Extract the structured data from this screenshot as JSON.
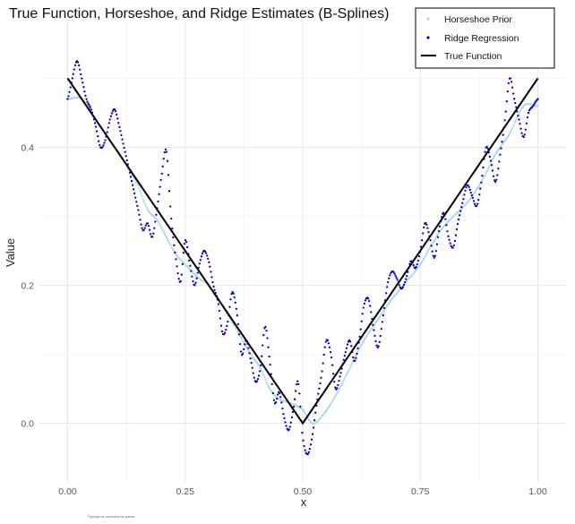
{
  "chart_data": {
    "type": "scatter",
    "title": "True Function, Horseshoe, and Ridge Estimates (B-Splines)",
    "xlabel": "x",
    "ylabel": "Value",
    "xlim": [
      -0.06,
      1.06
    ],
    "ylim": [
      -0.085,
      0.585
    ],
    "x_ticks": [
      0.0,
      0.25,
      0.5,
      0.75,
      1.0
    ],
    "x_tick_labels": [
      "0.00",
      "0.25",
      "0.50",
      "0.75",
      "1.00"
    ],
    "y_ticks": [
      0.0,
      0.2,
      0.4
    ],
    "y_tick_labels": [
      "0.0",
      "0.2",
      "0.4"
    ],
    "grid": true,
    "legend_position": "top-right",
    "footnote": "Fig/ridge-vs-horseshoe-bs-splines",
    "x_grid": {
      "start": 0,
      "end": 1,
      "count": 500
    },
    "series": [
      {
        "name": "Horseshoe Prior",
        "style": "points",
        "color": "#add8e6",
        "knots_x": [
          0.0,
          0.03,
          0.06,
          0.09,
          0.12,
          0.15,
          0.17,
          0.19,
          0.21,
          0.23,
          0.25,
          0.28,
          0.3,
          0.33,
          0.36,
          0.39,
          0.41,
          0.43,
          0.45,
          0.47,
          0.5,
          0.52,
          0.54,
          0.57,
          0.6,
          0.63,
          0.66,
          0.69,
          0.72,
          0.75,
          0.78,
          0.8,
          0.82,
          0.85,
          0.88,
          0.91,
          0.94,
          0.97,
          1.0
        ],
        "knots_y": [
          0.47,
          0.47,
          0.44,
          0.41,
          0.38,
          0.345,
          0.31,
          0.295,
          0.27,
          0.245,
          0.23,
          0.21,
          0.2,
          0.17,
          0.135,
          0.1,
          0.08,
          0.05,
          0.035,
          0.03,
          0.02,
          0.0,
          0.01,
          0.04,
          0.08,
          0.12,
          0.15,
          0.18,
          0.205,
          0.23,
          0.265,
          0.285,
          0.3,
          0.32,
          0.35,
          0.39,
          0.42,
          0.46,
          0.46
        ]
      },
      {
        "name": "Ridge Regression",
        "style": "points",
        "color": "#0000cd",
        "knots_x": [
          0.0,
          0.01,
          0.02,
          0.03,
          0.04,
          0.05,
          0.06,
          0.07,
          0.08,
          0.09,
          0.1,
          0.11,
          0.12,
          0.13,
          0.14,
          0.15,
          0.16,
          0.17,
          0.18,
          0.19,
          0.2,
          0.21,
          0.22,
          0.23,
          0.24,
          0.25,
          0.26,
          0.27,
          0.28,
          0.29,
          0.3,
          0.31,
          0.32,
          0.33,
          0.34,
          0.35,
          0.36,
          0.37,
          0.38,
          0.39,
          0.4,
          0.41,
          0.42,
          0.43,
          0.44,
          0.45,
          0.46,
          0.47,
          0.48,
          0.49,
          0.5,
          0.51,
          0.52,
          0.53,
          0.54,
          0.55,
          0.56,
          0.57,
          0.58,
          0.59,
          0.6,
          0.61,
          0.62,
          0.63,
          0.64,
          0.65,
          0.66,
          0.67,
          0.68,
          0.69,
          0.7,
          0.71,
          0.72,
          0.73,
          0.74,
          0.75,
          0.76,
          0.77,
          0.78,
          0.79,
          0.8,
          0.81,
          0.82,
          0.83,
          0.84,
          0.85,
          0.86,
          0.87,
          0.88,
          0.89,
          0.9,
          0.91,
          0.92,
          0.93,
          0.94,
          0.95,
          0.96,
          0.97,
          0.98,
          0.99,
          1.0
        ],
        "knots_y": [
          0.47,
          0.5,
          0.525,
          0.5,
          0.47,
          0.455,
          0.43,
          0.4,
          0.41,
          0.44,
          0.455,
          0.43,
          0.4,
          0.37,
          0.34,
          0.31,
          0.28,
          0.29,
          0.27,
          0.31,
          0.36,
          0.395,
          0.3,
          0.24,
          0.205,
          0.265,
          0.23,
          0.2,
          0.23,
          0.25,
          0.235,
          0.2,
          0.175,
          0.13,
          0.145,
          0.19,
          0.16,
          0.1,
          0.12,
          0.09,
          0.06,
          0.08,
          0.14,
          0.09,
          0.03,
          0.045,
          0.01,
          -0.01,
          0.02,
          0.06,
          -0.02,
          -0.045,
          -0.02,
          0.03,
          0.07,
          0.12,
          0.1,
          0.05,
          0.07,
          0.1,
          0.12,
          0.09,
          0.12,
          0.17,
          0.18,
          0.14,
          0.11,
          0.15,
          0.2,
          0.22,
          0.21,
          0.195,
          0.21,
          0.235,
          0.225,
          0.25,
          0.29,
          0.27,
          0.24,
          0.28,
          0.305,
          0.27,
          0.255,
          0.29,
          0.32,
          0.345,
          0.33,
          0.315,
          0.35,
          0.4,
          0.38,
          0.35,
          0.39,
          0.44,
          0.5,
          0.47,
          0.44,
          0.415,
          0.45,
          0.46,
          0.47
        ]
      },
      {
        "name": "True Function",
        "style": "line",
        "color": "#000000",
        "x": [
          0.0,
          0.5,
          1.0
        ],
        "y": [
          0.5,
          0.0,
          0.5
        ]
      }
    ]
  }
}
